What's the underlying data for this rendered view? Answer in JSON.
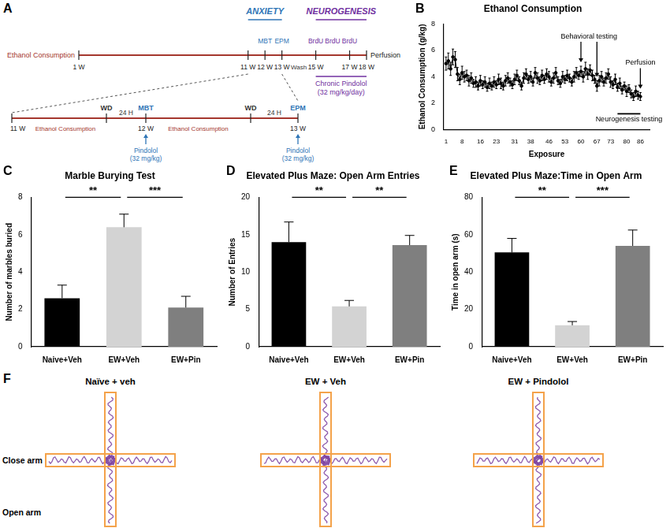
{
  "diagram": {
    "panel": "A",
    "timeline": {
      "label": "Ethanol Consumption",
      "range": [
        1,
        18
      ],
      "ticks": [
        {
          "value": 1,
          "label": "1 W"
        },
        {
          "value": 11,
          "label": "11 W"
        },
        {
          "value": 12,
          "label": "12 W"
        },
        {
          "value": 13,
          "label": "13 W"
        },
        {
          "value": 15,
          "label": "15 W"
        },
        {
          "value": 17,
          "label": "17 W"
        },
        {
          "value": 18,
          "label": "18 W"
        }
      ],
      "end_label": "Perfusion",
      "phases": [
        {
          "label": "ANXIETY",
          "from": 11,
          "to": 13,
          "color": "#2e75b6",
          "events": [
            {
              "label": "MBT",
              "week": 12
            },
            {
              "label": "EPM",
              "week": 13
            }
          ]
        },
        {
          "label": "NEUROGENESIS",
          "from": 15,
          "to": 18,
          "color": "#7030a0",
          "events": [
            {
              "label": "BrdU",
              "week": 15
            },
            {
              "label": "BrdU",
              "week": 16
            },
            {
              "label": "BrdU",
              "week": 17
            }
          ]
        }
      ],
      "wash": {
        "label": "Wash",
        "week": 14
      },
      "treatment": {
        "label": "Chronic Pindolol",
        "dose": "(32 mg/kg/day)",
        "from": 15,
        "to": 18,
        "color": "#7030a0"
      }
    },
    "detail": {
      "ticks": [
        {
          "below": "11 W"
        },
        {
          "span": "Ethanol Consumption",
          "span_side": "below",
          "above": "WD"
        },
        {
          "span": "24 H",
          "span_side": "above",
          "above": "MBT",
          "below": "12 W",
          "arrow": "Pindolol",
          "note": "(32 mg/kg)"
        },
        {
          "span": "Ethanol Consumption",
          "span_side": "below",
          "above": "WD"
        },
        {
          "span": "24 H",
          "span_side": "above",
          "above": "EPM",
          "below": "13 W",
          "arrow": "Pindolol",
          "note": "(32 mg/kg)"
        }
      ]
    }
  },
  "chart_data": [
    {
      "panel": "B",
      "type": "line",
      "title": "Ethanol Consumption",
      "x_label": "Exposure",
      "y_label": "Ethanol Consumption (g/kg)",
      "color": "#000000",
      "marker": "circle",
      "grid": false,
      "x": [
        1,
        2,
        3,
        4,
        5,
        6,
        7,
        8,
        9,
        10,
        11,
        12,
        13,
        14,
        15,
        16,
        17,
        18,
        19,
        20,
        21,
        22,
        23,
        24,
        25,
        26,
        27,
        28,
        29,
        30,
        31,
        32,
        33,
        34,
        35,
        36,
        37,
        38,
        39,
        40,
        41,
        42,
        43,
        44,
        45,
        46,
        47,
        48,
        49,
        50,
        51,
        52,
        53,
        54,
        55,
        56,
        57,
        58,
        59,
        60,
        61,
        62,
        63,
        64,
        65,
        66,
        67,
        68,
        69,
        70,
        71,
        72,
        73,
        74,
        75,
        76,
        77,
        78,
        79,
        80,
        81,
        82,
        83,
        84,
        85,
        86
      ],
      "values": [
        5.0,
        5.2,
        4.6,
        5.5,
        5.3,
        4.2,
        3.8,
        4.3,
        4.0,
        4.1,
        3.7,
        3.9,
        3.5,
        3.6,
        3.3,
        3.7,
        3.4,
        3.6,
        3.2,
        3.5,
        3.3,
        3.6,
        3.4,
        3.8,
        3.5,
        3.3,
        3.7,
        3.9,
        3.6,
        3.4,
        3.8,
        4.1,
        3.7,
        3.3,
        3.9,
        4.2,
        3.8,
        4.0,
        3.6,
        4.3,
        3.9,
        3.7,
        4.1,
        3.8,
        4.2,
        4.0,
        3.6,
        3.9,
        4.3,
        3.7,
        3.5,
        4.0,
        3.8,
        4.1,
        3.9,
        3.6,
        4.0,
        4.3,
        4.1,
        4.4,
        4.0,
        4.6,
        4.2,
        4.5,
        4.1,
        3.8,
        3.3,
        3.7,
        4.0,
        3.6,
        3.9,
        4.2,
        3.6,
        3.4,
        3.8,
        3.2,
        3.5,
        3.0,
        3.3,
        2.9,
        3.1,
        2.7,
        2.5,
        2.9,
        2.6,
        2.5
      ],
      "errors": [
        0.5,
        0.6,
        0.5,
        0.6,
        0.6,
        0.5,
        0.4,
        0.5,
        0.4,
        0.4,
        0.4,
        0.4,
        0.3,
        0.4,
        0.3,
        0.4,
        0.3,
        0.4,
        0.3,
        0.4,
        0.3,
        0.4,
        0.3,
        0.4,
        0.4,
        0.3,
        0.4,
        0.4,
        0.3,
        0.3,
        0.4,
        0.4,
        0.3,
        0.3,
        0.4,
        0.4,
        0.3,
        0.4,
        0.3,
        0.4,
        0.4,
        0.3,
        0.4,
        0.3,
        0.4,
        0.4,
        0.3,
        0.4,
        0.4,
        0.3,
        0.3,
        0.4,
        0.3,
        0.4,
        0.3,
        0.3,
        0.4,
        0.4,
        0.3,
        0.4,
        0.4,
        0.5,
        0.4,
        0.4,
        0.4,
        0.3,
        0.4,
        0.4,
        0.4,
        0.3,
        0.4,
        0.4,
        0.4,
        0.3,
        0.4,
        0.3,
        0.4,
        0.3,
        0.3,
        0.4,
        0.3,
        0.3,
        0.3,
        0.4,
        0.3,
        0.3
      ],
      "xlim": [
        0,
        90
      ],
      "xticks": [
        1,
        8,
        16,
        23,
        31,
        38,
        46,
        53,
        60,
        67,
        73,
        80,
        86
      ],
      "ylim": [
        0,
        8
      ],
      "yticks": [
        0,
        2,
        4,
        6,
        8
      ],
      "annotations": [
        {
          "text": "Behavioral testing",
          "arrows_at": [
            60,
            67
          ]
        },
        {
          "text": "Perfusion",
          "arrows_at": [
            86
          ]
        },
        {
          "text": "Neurogenesis testing",
          "span": [
            76,
            86
          ]
        }
      ]
    },
    {
      "panel": "C",
      "type": "bar",
      "title": "Marble Burying Test",
      "y_label": "Number of marbles buried",
      "grid": false,
      "categories": [
        "Naive+Veh",
        "EW+Veh",
        "EW+Pin"
      ],
      "values": [
        2.6,
        6.4,
        2.1
      ],
      "errors": [
        0.7,
        0.7,
        0.6
      ],
      "colors": [
        "#000000",
        "#d3d3d3",
        "#7f7f7f"
      ],
      "ylim": [
        0,
        8
      ],
      "yticks": [
        0,
        2,
        4,
        6,
        8
      ],
      "significance": [
        {
          "from": 0,
          "to": 1,
          "y": 8,
          "label": "**"
        },
        {
          "from": 1,
          "to": 2,
          "y": 8,
          "label": "***"
        }
      ]
    },
    {
      "panel": "D",
      "type": "bar",
      "title": "Elevated Plus Maze: Open Arm Entries",
      "y_label": "Number of Entries",
      "grid": false,
      "categories": [
        "Naive+Veh",
        "EW+Veh",
        "EW+Pin"
      ],
      "values": [
        14,
        5.4,
        13.6
      ],
      "errors": [
        2.7,
        0.8,
        1.3
      ],
      "colors": [
        "#000000",
        "#d3d3d3",
        "#7f7f7f"
      ],
      "ylim": [
        0,
        20
      ],
      "yticks": [
        0,
        5,
        10,
        15,
        20
      ],
      "significance": [
        {
          "from": 0,
          "to": 1,
          "y": 20,
          "label": "**"
        },
        {
          "from": 1,
          "to": 2,
          "y": 20,
          "label": "**"
        }
      ]
    },
    {
      "panel": "E",
      "type": "bar",
      "title": "Elevated Plus Maze:Time in Open Arm",
      "y_label": "Time in open arm (s)",
      "grid": false,
      "categories": [
        "Naive+Veh",
        "EW+Veh",
        "EW+Pin"
      ],
      "values": [
        50.5,
        11.5,
        54
      ],
      "errors": [
        7.5,
        2,
        8.5
      ],
      "colors": [
        "#000000",
        "#d3d3d3",
        "#7f7f7f"
      ],
      "ylim": [
        0,
        80
      ],
      "yticks": [
        0,
        20,
        40,
        60,
        80
      ],
      "significance": [
        {
          "from": 0,
          "to": 1,
          "y": 80,
          "label": "**"
        },
        {
          "from": 1,
          "to": 2,
          "y": 80,
          "label": "***"
        }
      ]
    }
  ],
  "tracks": {
    "panel": "F",
    "titles": [
      "Naïve + veh",
      "EW + Veh",
      "EW + Pindolol"
    ],
    "closed_arm_label": "Close arm",
    "open_arm_label": "Open arm"
  }
}
